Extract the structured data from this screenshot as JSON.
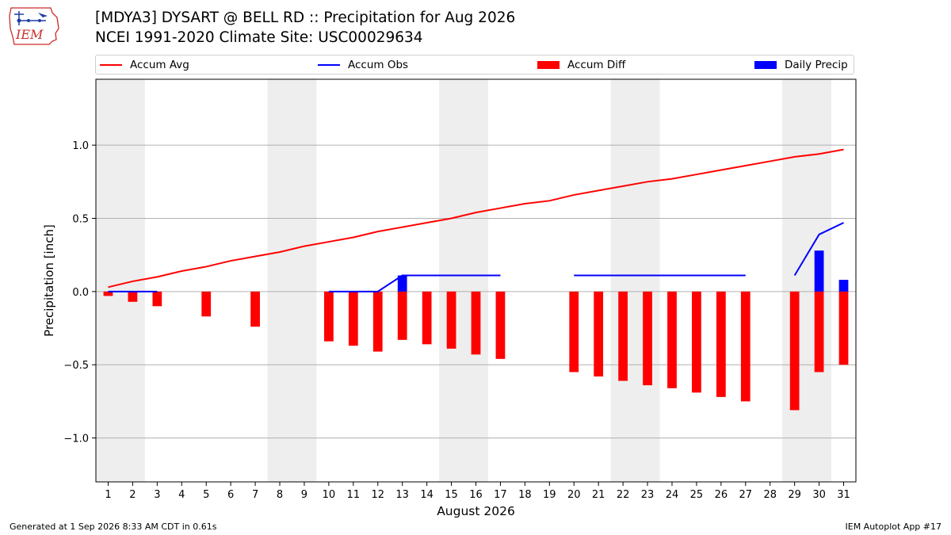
{
  "header": {
    "title": "[MDYA3] DYSART @ BELL RD :: Precipitation for Aug 2026",
    "subtitle": "NCEI 1991-2020 Climate Site: USC00029634"
  },
  "logo": {
    "text": "IEM",
    "icon": "iowa-state-outline-weather-station-icon"
  },
  "footer": {
    "generated": "Generated at 1 Sep 2026 8:33 AM CDT in 0.61s",
    "app": "IEM Autoplot App #17"
  },
  "colors": {
    "accum_avg": "#ff0000",
    "accum_obs": "#0000ff",
    "accum_diff": "#ff0000",
    "daily_precip": "#0000ff",
    "weekend_shade": "#eeeeee",
    "grid": "#b0b0b0"
  },
  "chart_data": {
    "type": "bar",
    "title": "[MDYA3] DYSART @ BELL RD :: Precipitation for Aug 2026",
    "xlabel": "August 2026",
    "ylabel": "Precipitation [inch]",
    "ylim": [
      -1.3,
      1.45
    ],
    "yticks": [
      -1.0,
      -0.5,
      0.0,
      0.5,
      1.0
    ],
    "ytick_labels": [
      "−1.0",
      "−0.5",
      "0.0",
      "0.5",
      "1.0"
    ],
    "grid": "horizontal",
    "legend_position": "top",
    "days": [
      1,
      2,
      3,
      4,
      5,
      6,
      7,
      8,
      9,
      10,
      11,
      12,
      13,
      14,
      15,
      16,
      17,
      18,
      19,
      20,
      21,
      22,
      23,
      24,
      25,
      26,
      27,
      28,
      29,
      30,
      31
    ],
    "weekend_shaded_ranges": [
      [
        1,
        2
      ],
      [
        8,
        9
      ],
      [
        15,
        16
      ],
      [
        22,
        23
      ],
      [
        29,
        30
      ]
    ],
    "series": [
      {
        "name": "Accum Avg",
        "kind": "line",
        "x": [
          1,
          2,
          3,
          4,
          5,
          6,
          7,
          8,
          9,
          10,
          11,
          12,
          13,
          14,
          15,
          16,
          17,
          18,
          19,
          20,
          21,
          22,
          23,
          24,
          25,
          26,
          27,
          28,
          29,
          30,
          31
        ],
        "values": [
          0.03,
          0.07,
          0.1,
          0.14,
          0.17,
          0.21,
          0.24,
          0.27,
          0.31,
          0.34,
          0.37,
          0.41,
          0.44,
          0.47,
          0.5,
          0.54,
          0.57,
          0.6,
          0.62,
          0.66,
          0.69,
          0.72,
          0.75,
          0.77,
          0.8,
          0.83,
          0.86,
          0.89,
          0.92,
          0.94,
          0.97
        ]
      },
      {
        "name": "Accum Obs",
        "kind": "line",
        "segments": [
          {
            "x": [
              1,
              2,
              3
            ],
            "values": [
              0.0,
              0.0,
              0.0
            ]
          },
          {
            "x": [
              10,
              11,
              12,
              13,
              14,
              15,
              16,
              17
            ],
            "values": [
              0.0,
              0.0,
              0.0,
              0.11,
              0.11,
              0.11,
              0.11,
              0.11
            ]
          },
          {
            "x": [
              20,
              21,
              22,
              23,
              24,
              25,
              26,
              27
            ],
            "values": [
              0.11,
              0.11,
              0.11,
              0.11,
              0.11,
              0.11,
              0.11,
              0.11
            ]
          },
          {
            "x": [
              29,
              30,
              31
            ],
            "values": [
              0.11,
              0.39,
              0.47
            ]
          }
        ]
      },
      {
        "name": "Accum Diff",
        "kind": "bar",
        "x": [
          1,
          2,
          3,
          5,
          7,
          10,
          11,
          12,
          13,
          14,
          15,
          16,
          17,
          20,
          21,
          22,
          23,
          24,
          25,
          26,
          27,
          29,
          30,
          31
        ],
        "values": [
          -0.03,
          -0.07,
          -0.1,
          -0.17,
          -0.24,
          -0.34,
          -0.37,
          -0.41,
          -0.33,
          -0.36,
          -0.39,
          -0.43,
          -0.46,
          -0.55,
          -0.58,
          -0.61,
          -0.64,
          -0.66,
          -0.69,
          -0.72,
          -0.75,
          -0.81,
          -0.55,
          -0.5
        ]
      },
      {
        "name": "Daily Precip",
        "kind": "bar",
        "x": [
          13,
          30,
          31
        ],
        "values": [
          0.11,
          0.28,
          0.08
        ]
      }
    ]
  }
}
